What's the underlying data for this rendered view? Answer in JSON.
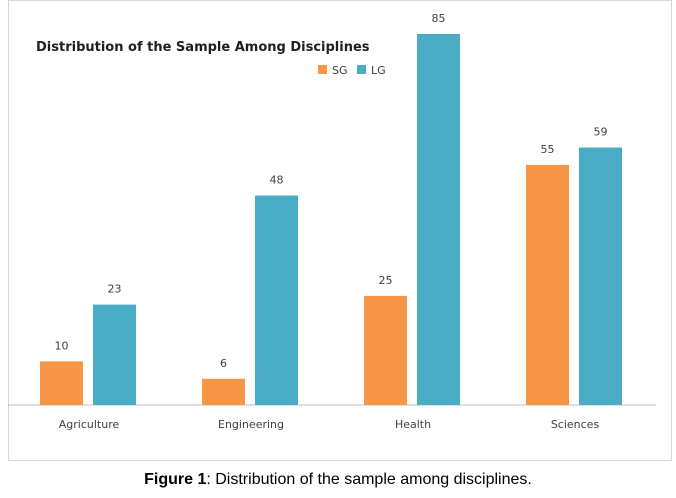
{
  "chart_data": {
    "type": "bar",
    "title": "Distribution of the Sample Among Disciplines",
    "categories": [
      "Agriculture",
      "Engineering",
      "Health",
      "Sciences"
    ],
    "series": [
      {
        "name": "SG",
        "values": [
          10,
          6,
          25,
          55
        ],
        "color": "#f79646"
      },
      {
        "name": "LG",
        "values": [
          23,
          48,
          85,
          59
        ],
        "color": "#4bacc6"
      }
    ],
    "ylim": [
      0,
      85
    ],
    "grid": false,
    "legend_position": "top-center",
    "data_labels": true
  },
  "caption": {
    "label": "Figure 1",
    "text": ": Distribution of the sample among disciplines."
  }
}
